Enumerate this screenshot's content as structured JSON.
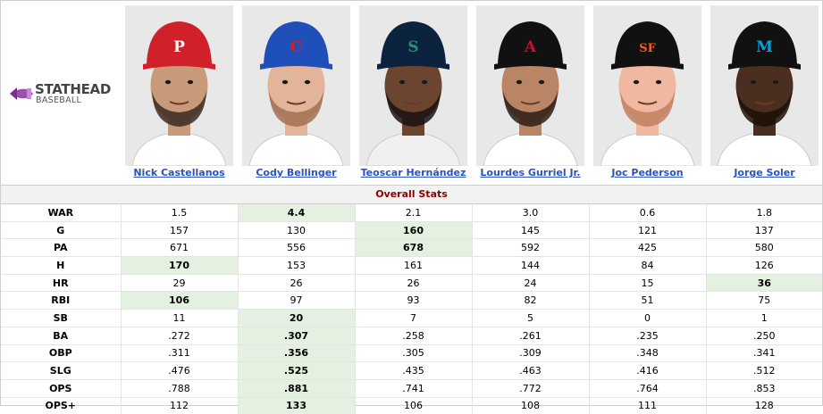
{
  "logo": {
    "line1": "STATHEAD",
    "line2": "BASEBALL",
    "accent": "#7b2d8e"
  },
  "players": [
    {
      "name": "Nick Castellanos",
      "cap_color": "#d0202a",
      "cap_logo": "P",
      "logo_color": "#ffffff",
      "skin": "#c99a7a",
      "beard": "#3a2a20",
      "shirt": "#ffffff",
      "bg": "#e8e8e8"
    },
    {
      "name": "Cody Bellinger",
      "cap_color": "#1f4fb8",
      "cap_logo": "C",
      "logo_color": "#d0202a",
      "skin": "#e2b49a",
      "beard": "#a07050",
      "shirt": "#ffffff",
      "bg": "#e8e8e8"
    },
    {
      "name": "Teoscar Hernández",
      "cap_color": "#0c2340",
      "cap_logo": "S",
      "logo_color": "#2e8b7a",
      "skin": "#6b4530",
      "beard": "#1a1210",
      "shirt": "#f0f0f0",
      "bg": "#e8e8e8"
    },
    {
      "name": "Lourdes Gurriel Jr.",
      "cap_color": "#111111",
      "cap_logo": "A",
      "logo_color": "#c8102e",
      "skin": "#b98565",
      "beard": "#2a1c14",
      "shirt": "#ffffff",
      "bg": "#e8e8e8"
    },
    {
      "name": "Joc Pederson",
      "cap_color": "#111111",
      "cap_logo": "SF",
      "logo_color": "#fd5a1e",
      "skin": "#f0b8a0",
      "beard": "#c08060",
      "shirt": "#ffffff",
      "bg": "#e8e8e8"
    },
    {
      "name": "Jorge Soler",
      "cap_color": "#111111",
      "cap_logo": "M",
      "logo_color": "#00a3e0",
      "skin": "#4a2e20",
      "beard": "#1a1008",
      "shirt": "#ffffff",
      "bg": "#e8e8e8"
    }
  ],
  "section_title": "Overall Stats",
  "stats": [
    {
      "label": "WAR",
      "values": [
        "1.5",
        "4.4",
        "2.1",
        "3.0",
        "0.6",
        "1.8"
      ],
      "best": 1
    },
    {
      "label": "G",
      "values": [
        "157",
        "130",
        "160",
        "145",
        "121",
        "137"
      ],
      "best": 2
    },
    {
      "label": "PA",
      "values": [
        "671",
        "556",
        "678",
        "592",
        "425",
        "580"
      ],
      "best": 2
    },
    {
      "label": "H",
      "values": [
        "170",
        "153",
        "161",
        "144",
        "84",
        "126"
      ],
      "best": 0
    },
    {
      "label": "HR",
      "values": [
        "29",
        "26",
        "26",
        "24",
        "15",
        "36"
      ],
      "best": 5
    },
    {
      "label": "RBI",
      "values": [
        "106",
        "97",
        "93",
        "82",
        "51",
        "75"
      ],
      "best": 0
    },
    {
      "label": "SB",
      "values": [
        "11",
        "20",
        "7",
        "5",
        "0",
        "1"
      ],
      "best": 1
    },
    {
      "label": "BA",
      "values": [
        ".272",
        ".307",
        ".258",
        ".261",
        ".235",
        ".250"
      ],
      "best": 1
    },
    {
      "label": "OBP",
      "values": [
        ".311",
        ".356",
        ".305",
        ".309",
        ".348",
        ".341"
      ],
      "best": 1
    },
    {
      "label": "SLG",
      "values": [
        ".476",
        ".525",
        ".435",
        ".463",
        ".416",
        ".512"
      ],
      "best": 1
    },
    {
      "label": "OPS",
      "values": [
        ".788",
        ".881",
        ".741",
        ".772",
        ".764",
        ".853"
      ],
      "best": 1
    },
    {
      "label": "OPS+",
      "values": [
        "112",
        "133",
        "106",
        "108",
        "111",
        "128"
      ],
      "best": 1
    }
  ],
  "colors": {
    "best_bg": "#e4f0e0",
    "link": "#2a53c1",
    "section_title": "#8b0000"
  }
}
